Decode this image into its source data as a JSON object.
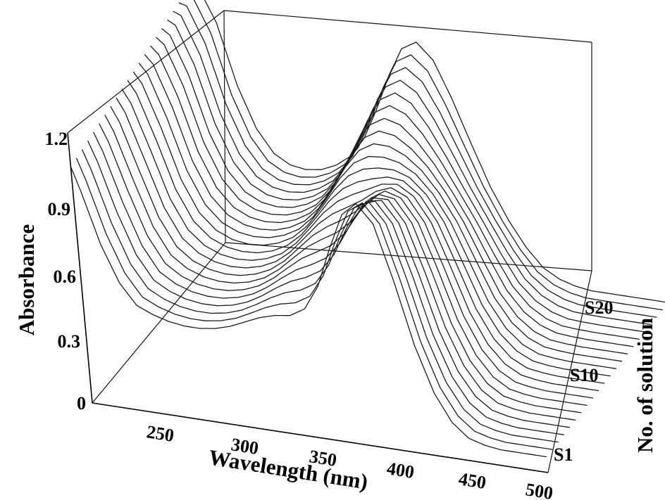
{
  "chart_data": {
    "type": "line",
    "chart_style": "3D waterfall",
    "xlabel": "Wavelength (nm)",
    "ylabel": "Absorbance",
    "zlabel": "No. of solution",
    "x_ticks": [
      "250",
      "300",
      "350",
      "400",
      "450",
      "500"
    ],
    "y_ticks": [
      "0",
      "0.3",
      "0.6",
      "0.9",
      "1.2"
    ],
    "z_ticks": [
      "S1",
      "S10",
      "S20"
    ],
    "xlim": [
      205,
      500
    ],
    "ylim": [
      0,
      1.2
    ],
    "z_count": 22,
    "grid": false,
    "legend": "none",
    "line_color": "#1a1a1a",
    "shape_notes": "Series run S1 (front) to S22 (back). Front spectra show a strong band near 395 nm and a weak one near 335 nm; with increasing solution number the 395 nm band decreases and a band near 360 nm grows, giving an isosbestic crossing near 380 nm.",
    "series_template": {
      "x": [
        205,
        210,
        220,
        230,
        240,
        250,
        260,
        270,
        280,
        290,
        300,
        310,
        320,
        330,
        340,
        350,
        360,
        370,
        380,
        390,
        400,
        410,
        420,
        430,
        440,
        450,
        460,
        470,
        480,
        490,
        500
      ],
      "front_S1": [
        1.05,
        0.95,
        0.72,
        0.56,
        0.47,
        0.44,
        0.42,
        0.41,
        0.41,
        0.42,
        0.44,
        0.47,
        0.5,
        0.52,
        0.53,
        0.57,
        0.68,
        0.86,
        1.02,
        1.08,
        1.0,
        0.76,
        0.48,
        0.28,
        0.16,
        0.1,
        0.08,
        0.07,
        0.07,
        0.07,
        0.07
      ],
      "back_S22": [
        1.2,
        1.2,
        1.05,
        0.78,
        0.6,
        0.5,
        0.46,
        0.45,
        0.46,
        0.49,
        0.54,
        0.63,
        0.77,
        0.93,
        1.06,
        1.1,
        1.03,
        0.87,
        0.68,
        0.5,
        0.36,
        0.25,
        0.17,
        0.13,
        0.11,
        0.1,
        0.1,
        0.1,
        0.1,
        0.1,
        0.1
      ]
    }
  }
}
